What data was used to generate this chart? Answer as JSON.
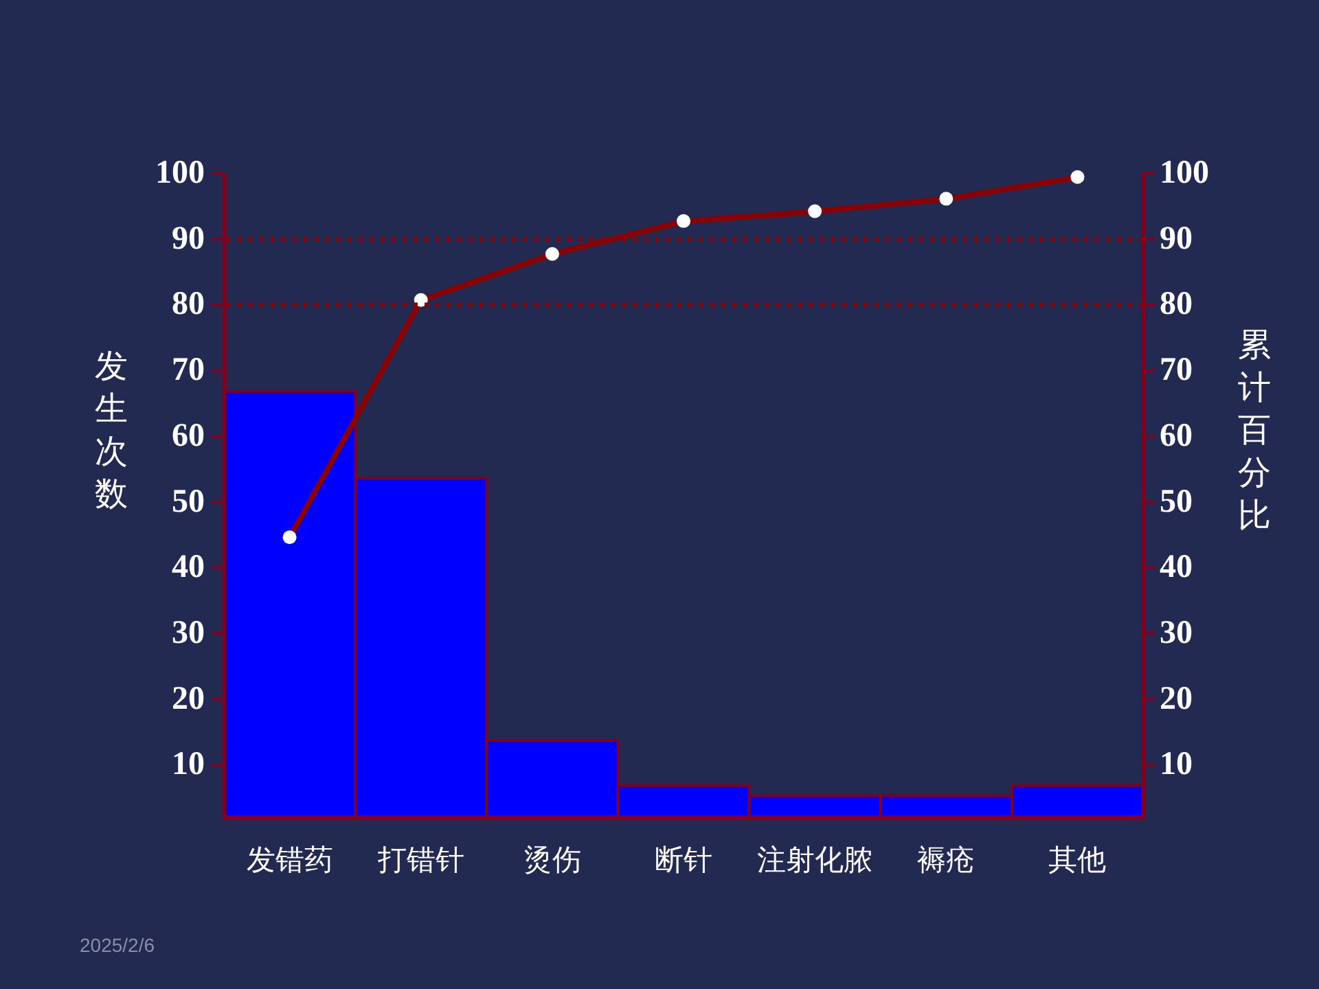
{
  "chart_data": {
    "type": "bar",
    "ylabel": "发生次数",
    "y2label": "累计百分比",
    "categories": [
      "发错药",
      "打错针",
      "烫伤",
      "断针",
      "注射化脓",
      "褥疮",
      "其他"
    ],
    "series": [
      {
        "color": "#0000ff",
        "values": [
          66.8,
          53.6,
          13.7,
          6.9,
          5.3,
          5.3,
          6.9
        ]
      },
      {
        "type": "line",
        "axis": "y2",
        "color": "#8b0000",
        "marker": "circle",
        "values": [
          44.6,
          80.7,
          87.7,
          92.7,
          94.2,
          96.1,
          99.4
        ]
      }
    ],
    "ylim": [
      2,
      100
    ],
    "yticks": [
      10,
      20,
      30,
      40,
      50,
      60,
      70,
      80,
      90,
      100
    ],
    "y2lim": [
      2,
      100
    ],
    "y2ticks": [
      10,
      20,
      30,
      40,
      50,
      60,
      70,
      80,
      90,
      100
    ],
    "ref_lines": [
      {
        "axis": "y2",
        "value": 90,
        "color": "#8b0000",
        "line_style": "dotted"
      },
      {
        "axis": "y2",
        "value": 80,
        "color": "#8b0000",
        "line_style": "dotted"
      }
    ],
    "annotations": [
      "2025/2/6"
    ],
    "grid": false
  }
}
